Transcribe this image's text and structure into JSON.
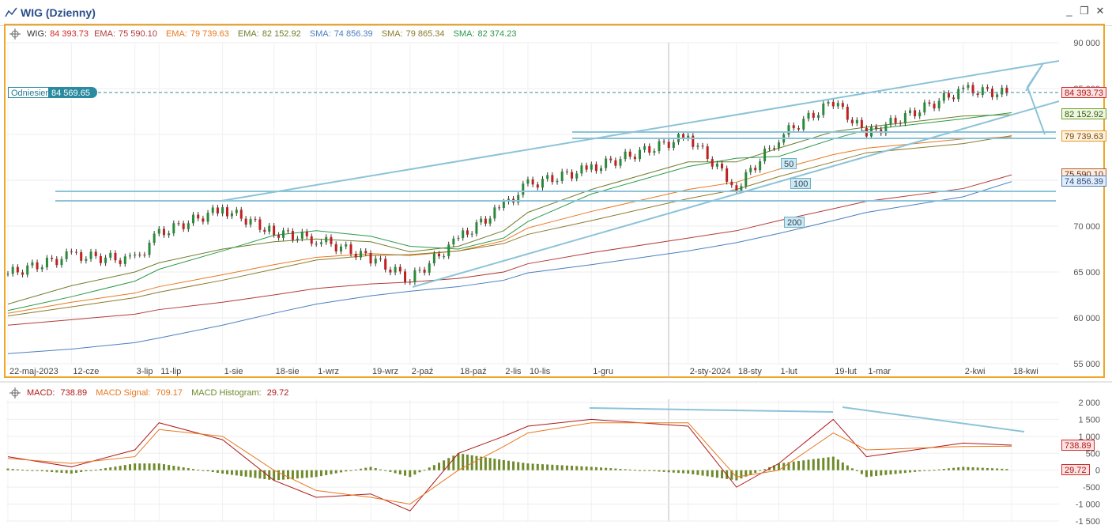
{
  "window": {
    "title": "WIG (Dzienny)",
    "icon": "line-chart-icon",
    "buttons": [
      "minimize-icon",
      "restore-icon",
      "close-icon"
    ]
  },
  "price_legend": {
    "wig_label": "WIG:",
    "wig_value": "84 393.73",
    "ema1_label": "EMA:",
    "ema1_value": "75 590.10",
    "ema2_label": "EMA:",
    "ema2_value": "79 739.63",
    "ema3_label": "EMA:",
    "ema3_value": "82 152.92",
    "sma1_label": "SMA:",
    "sma1_value": "74 856.39",
    "sma2_label": "SMA:",
    "sma2_value": "79 865.34",
    "sma3_label": "SMA:",
    "sma3_value": "82 374.23",
    "colors": {
      "wig": "#d02a2a",
      "ema1": "#b33a3a",
      "ema2": "#e8781e",
      "ema3": "#6e7e2a",
      "sma1": "#4a7ec0",
      "sma2": "#8a7a2a",
      "sma3": "#2a9a4a"
    }
  },
  "reference": {
    "label": "Odniesienie",
    "value": "84 569.65"
  },
  "price_badges": [
    {
      "text": "84 393.73",
      "bg": "#fbe3e3",
      "border": "#d02a2a",
      "color": "#b01818"
    },
    {
      "text": "82 152.92",
      "bg": "#eef7e1",
      "border": "#6e9e2a",
      "color": "#3a5a10"
    },
    {
      "text": "79 739.63",
      "bg": "#fdf1df",
      "border": "#e8981e",
      "color": "#7a4a08"
    },
    {
      "text": "75 590.10",
      "bg": "#fbeede",
      "border": "#b35a2a",
      "color": "#7a3008"
    },
    {
      "text": "74 856.39",
      "bg": "#e4eef9",
      "border": "#4a7ec0",
      "color": "#2a4a80"
    }
  ],
  "ma_labels": [
    "50",
    "100",
    "200"
  ],
  "macd_legend": {
    "macd_label": "MACD:",
    "macd_value": "738.89",
    "signal_label": "MACD Signal:",
    "signal_value": "709.17",
    "hist_label": "MACD Histogram:",
    "hist_value": "29.72",
    "colors": {
      "macd": "#b01818",
      "signal": "#e8781e",
      "hist": "#6e8a2a"
    }
  },
  "macd_badges": [
    {
      "text": "738.89",
      "bg": "#fbe3e3",
      "border": "#d02a2a",
      "color": "#b01818"
    },
    {
      "text": "29.72",
      "bg": "#fbe3e3",
      "border": "#d02a2a",
      "color": "#b01818"
    }
  ],
  "chart_data": [
    {
      "type": "candlestick",
      "title": "WIG (Dzienny)",
      "x_ticks": [
        "22-maj-2023",
        "12-cze",
        "3-lip",
        "11-lip",
        "1-sie",
        "18-sie",
        "1-wrz",
        "19-wrz",
        "2-paź",
        "18-paź",
        "2-lis",
        "10-lis",
        "1-gru",
        "2-sty-2024",
        "18-sty",
        "1-lut",
        "19-lut",
        "1-mar",
        "2-kwi",
        "18-kwi"
      ],
      "y_ticks": [
        "90 000",
        "85 000",
        "80 000",
        "75 000",
        "70 000",
        "65 000",
        "60 000",
        "55 000"
      ],
      "ylim": [
        54000,
        91000
      ],
      "x": [
        "2023-05-22",
        "2023-06-12",
        "2023-07-03",
        "2023-07-11",
        "2023-08-01",
        "2023-08-18",
        "2023-09-01",
        "2023-09-19",
        "2023-10-02",
        "2023-10-18",
        "2023-11-02",
        "2023-11-10",
        "2023-12-01",
        "2024-01-02",
        "2024-01-18",
        "2024-02-01",
        "2024-02-19",
        "2024-03-01",
        "2024-04-02",
        "2024-04-18"
      ],
      "close": [
        64800,
        66800,
        66300,
        69200,
        71900,
        69300,
        68600,
        66500,
        64200,
        68600,
        72200,
        74500,
        76300,
        79800,
        74200,
        79700,
        83600,
        80000,
        84900,
        84400
      ],
      "series": [
        {
          "name": "EMA",
          "values": [
            61500,
            63500,
            65000,
            66000,
            67500,
            68300,
            68600,
            68300,
            67200,
            67800,
            69500,
            71500,
            74000,
            77000,
            77000,
            78500,
            80300,
            80800,
            82000,
            82152.92
          ]
        },
        {
          "name": "EMA",
          "values": [
            60500,
            61700,
            62700,
            63400,
            64700,
            65800,
            66600,
            67000,
            66800,
            67300,
            68400,
            69800,
            71600,
            74000,
            74800,
            76200,
            77800,
            78500,
            79500,
            79739.63
          ]
        },
        {
          "name": "EMA",
          "values": [
            59200,
            59800,
            60400,
            60900,
            61700,
            62500,
            63200,
            63700,
            63900,
            64300,
            65000,
            65900,
            67100,
            68700,
            69500,
            70600,
            71900,
            72700,
            74100,
            75590.1
          ]
        },
        {
          "name": "SMA",
          "values": [
            56100,
            56600,
            57300,
            57800,
            59200,
            60500,
            61500,
            62400,
            62900,
            63400,
            64100,
            64900,
            65800,
            67300,
            68200,
            69200,
            70600,
            71500,
            73200,
            74856.39
          ]
        },
        {
          "name": "SMA",
          "values": [
            60200,
            61200,
            62200,
            62800,
            64100,
            65300,
            66300,
            66800,
            66900,
            67300,
            68100,
            69100,
            70600,
            73000,
            74000,
            75400,
            77000,
            78000,
            79000,
            79865.34
          ]
        },
        {
          "name": "SMA",
          "values": [
            60800,
            62300,
            64000,
            65300,
            67300,
            69000,
            69500,
            68900,
            67800,
            67500,
            68700,
            70500,
            73500,
            76500,
            77400,
            77600,
            79500,
            80500,
            81700,
            82374.23
          ]
        }
      ],
      "reference_line": 84569.65
    },
    {
      "type": "macd",
      "y_ticks": [
        "2 000",
        "1 500",
        "1 000",
        "500",
        "0",
        "-500",
        "-1 000",
        "-1 500"
      ],
      "ylim": [
        -1500,
        2000
      ],
      "x": [
        "2023-05-22",
        "2023-06-12",
        "2023-07-03",
        "2023-07-11",
        "2023-08-01",
        "2023-08-18",
        "2023-09-01",
        "2023-09-19",
        "2023-10-02",
        "2023-10-18",
        "2023-11-02",
        "2023-11-10",
        "2023-12-01",
        "2024-01-02",
        "2024-01-18",
        "2024-02-01",
        "2024-02-19",
        "2024-03-01",
        "2024-04-02",
        "2024-04-18"
      ],
      "series": [
        {
          "name": "MACD",
          "values": [
            400,
            100,
            600,
            1400,
            900,
            -300,
            -800,
            -700,
            -1200,
            500,
            1000,
            1300,
            1500,
            1300,
            -500,
            200,
            1500,
            400,
            800,
            738.89
          ]
        },
        {
          "name": "MACD Signal",
          "values": [
            350,
            200,
            400,
            1200,
            1000,
            0,
            -600,
            -800,
            -1000,
            0,
            700,
            1100,
            1400,
            1400,
            -200,
            0,
            1100,
            600,
            700,
            709.17
          ]
        },
        {
          "name": "MACD Histogram",
          "values": [
            50,
            -100,
            200,
            200,
            -100,
            -300,
            -200,
            100,
            -200,
            500,
            300,
            200,
            100,
            -100,
            -300,
            200,
            400,
            -200,
            100,
            29.72
          ]
        }
      ]
    }
  ]
}
